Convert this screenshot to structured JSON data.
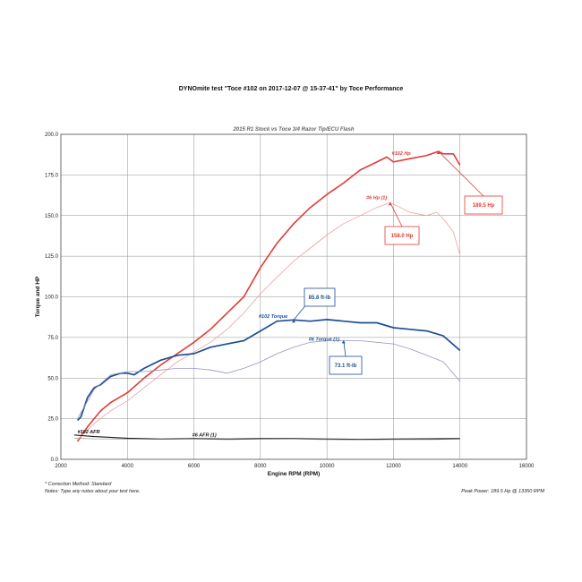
{
  "header": {
    "title": "DYNOmite test \"Toce  #102 on 2017-12-07 @ 15-37-41\" by Toce Performance"
  },
  "footer": {
    "correction": "* Correction Method: Standard",
    "notes": "Notes: Type any notes about your test here.",
    "peak": "Peak Power: 189.5 Hp @ 13350 RPM"
  },
  "chart_data": {
    "type": "line",
    "title": "2015 R1 Stock vs Toce 3/4 Razor Tip/ECU Flash",
    "xlabel": "Engine RPM (RPM)",
    "ylabel": "Torque and HP",
    "xlim": [
      2000,
      16000
    ],
    "ylim": [
      0,
      200
    ],
    "xticks": [
      "2000",
      "4000",
      "6000",
      "8000",
      "10000",
      "12000",
      "14000",
      "16000"
    ],
    "yticks": [
      "0.0",
      "25.0",
      "50.0",
      "75.0",
      "100.0",
      "125.0",
      "150.0",
      "175.0",
      "200.0"
    ],
    "grid": true,
    "colors": {
      "hp102": "#e23b36",
      "hp6": "#eda0a0",
      "tq102": "#1c4f96",
      "tq6": "#9a96c0",
      "afr102": "#1a1a1a",
      "afr6": "#888888"
    },
    "series": [
      {
        "key": "hp102",
        "name": "#102 Hp",
        "x": [
          2500,
          2600,
          2800,
          3000,
          3200,
          3500,
          4000,
          4500,
          5000,
          5500,
          6000,
          6500,
          7000,
          7500,
          8000,
          8500,
          9000,
          9500,
          10000,
          10500,
          11000,
          11500,
          11800,
          12000,
          12500,
          13000,
          13350,
          13500,
          13800,
          14000
        ],
        "y": [
          11,
          14,
          20,
          25,
          30,
          35,
          41,
          50,
          58,
          65,
          72,
          80,
          90,
          100,
          118,
          133,
          145,
          155,
          163,
          170,
          178,
          183,
          186,
          183,
          185,
          187,
          189.5,
          188,
          188,
          181
        ]
      },
      {
        "key": "hp6",
        "name": "#6 Hp (1)",
        "x": [
          2500,
          3000,
          3500,
          4000,
          4500,
          5000,
          5500,
          6000,
          6500,
          7000,
          7500,
          8000,
          8500,
          9000,
          9500,
          10000,
          10500,
          11000,
          11500,
          11900,
          12200,
          12500,
          13000,
          13300,
          13500,
          13800,
          14000
        ],
        "y": [
          12,
          22,
          30,
          36,
          44,
          52,
          60,
          66,
          72,
          80,
          90,
          102,
          112,
          122,
          130,
          138,
          145,
          150,
          155,
          158,
          155,
          152,
          150,
          152,
          148,
          140,
          126
        ]
      },
      {
        "key": "tq102",
        "name": "#102 Torque",
        "x": [
          2500,
          2600,
          2800,
          3000,
          3200,
          3500,
          3800,
          4000,
          4200,
          4500,
          5000,
          5500,
          6000,
          6500,
          7000,
          7500,
          8000,
          8500,
          9000,
          9500,
          10000,
          10500,
          11000,
          11500,
          12000,
          12500,
          13000,
          13500,
          14000
        ],
        "y": [
          24,
          26,
          38,
          44,
          46,
          51,
          53,
          53,
          52,
          56,
          61,
          64,
          65,
          69,
          71,
          73,
          79,
          85,
          85.8,
          85,
          86,
          85,
          84,
          84,
          81,
          80,
          79,
          76,
          67
        ]
      },
      {
        "key": "tq6",
        "name": "#6 Torque (1)",
        "x": [
          2500,
          3000,
          3500,
          4000,
          4500,
          5000,
          5500,
          6000,
          6500,
          7000,
          7500,
          8000,
          8500,
          9000,
          9500,
          10000,
          10500,
          11000,
          11500,
          12000,
          12500,
          13000,
          13500,
          14000
        ],
        "y": [
          25,
          43,
          52,
          54,
          54,
          55,
          56,
          56,
          55,
          53,
          56,
          60,
          65,
          69,
          72,
          73,
          73.1,
          73,
          72,
          71,
          68,
          64,
          60,
          48
        ]
      },
      {
        "key": "afr102",
        "name": "#102 AFR",
        "x": [
          2400,
          3000,
          4000,
          5000,
          6000,
          7000,
          8000,
          9000,
          10000,
          11000,
          12000,
          13000,
          14000
        ],
        "y": [
          15,
          14,
          13,
          12.5,
          12.8,
          12.5,
          12.8,
          12.8,
          12.5,
          12.3,
          12.5,
          12.6,
          12.8
        ]
      },
      {
        "key": "afr6",
        "name": "#6 AFR (1)",
        "x": [
          2400,
          3000,
          4000,
          5000,
          6000,
          7000,
          8000,
          9000,
          10000,
          11000,
          12000,
          13000,
          14000
        ],
        "y": [
          13,
          12.6,
          12.5,
          12.3,
          12.5,
          12.2,
          12.4,
          12.5,
          12.2,
          12.0,
          12.1,
          12.2,
          12.4
        ]
      }
    ],
    "annotations": {
      "hp102_label": "#102 Hp",
      "hp6_label": "#6 Hp (1)",
      "tq102_label": "#102 Torque",
      "tq6_label": "#6 Torque (1)",
      "afr102_label": "#102 AFR",
      "afr6_label": "#6 AFR (1)",
      "peak_hp_box": "189.5 Hp",
      "peak_hp6_box": "158.0 Hp",
      "peak_tq_box": "85.8 ft-lb",
      "peak_tq6_box": "73.1 ft-lb"
    }
  }
}
